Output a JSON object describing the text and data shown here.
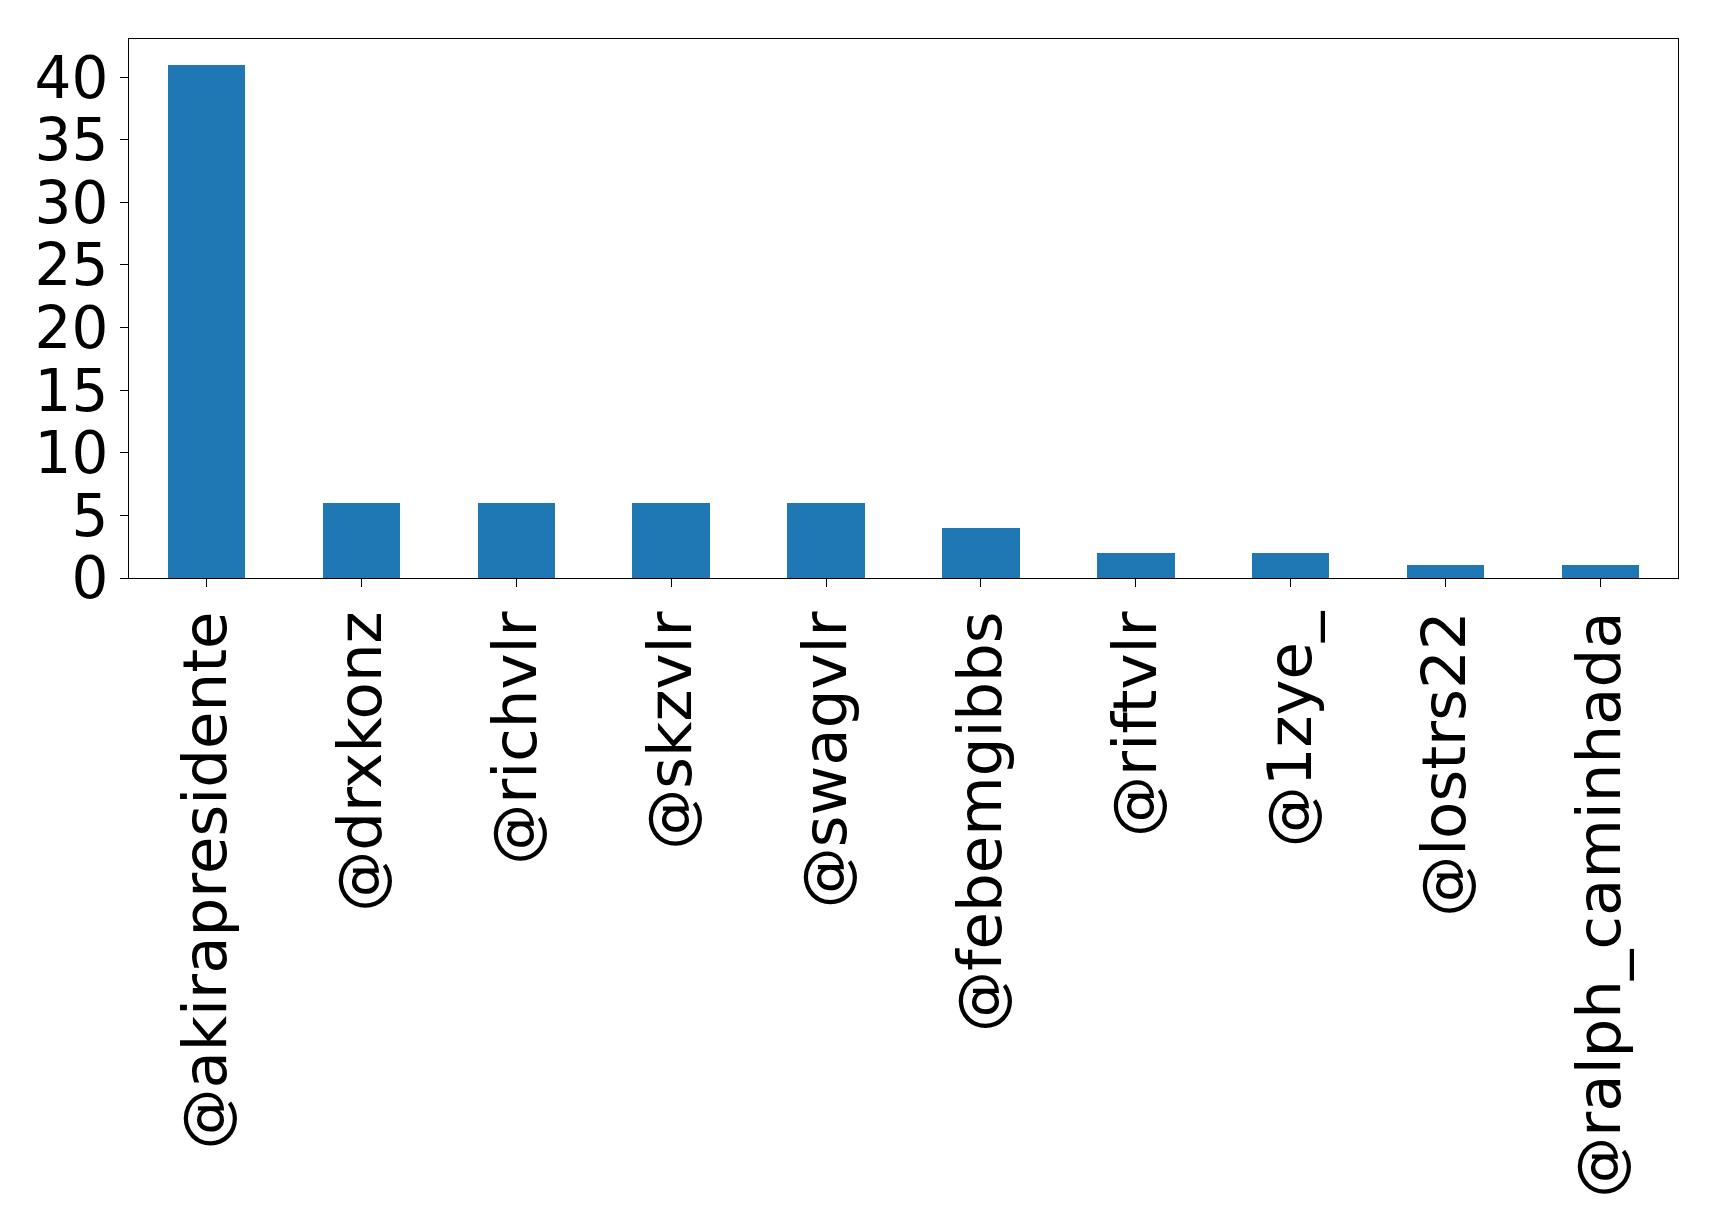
{
  "chart_data": {
    "type": "bar",
    "categories": [
      "@akirapresidente",
      "@drxkonz",
      "@richvlr",
      "@skzvlr",
      "@swagvlr",
      "@febemgibbs",
      "@riftvlr",
      "@1zye_",
      "@lostrs22",
      "@ralph_caminhada"
    ],
    "values": [
      41,
      6,
      6,
      6,
      6,
      4,
      2,
      2,
      1,
      1
    ],
    "color": "#1f77b4",
    "ylim": [
      0,
      43.05
    ],
    "yticks": [
      0,
      5,
      10,
      15,
      20,
      25,
      30,
      35,
      40
    ],
    "legend": false
  }
}
